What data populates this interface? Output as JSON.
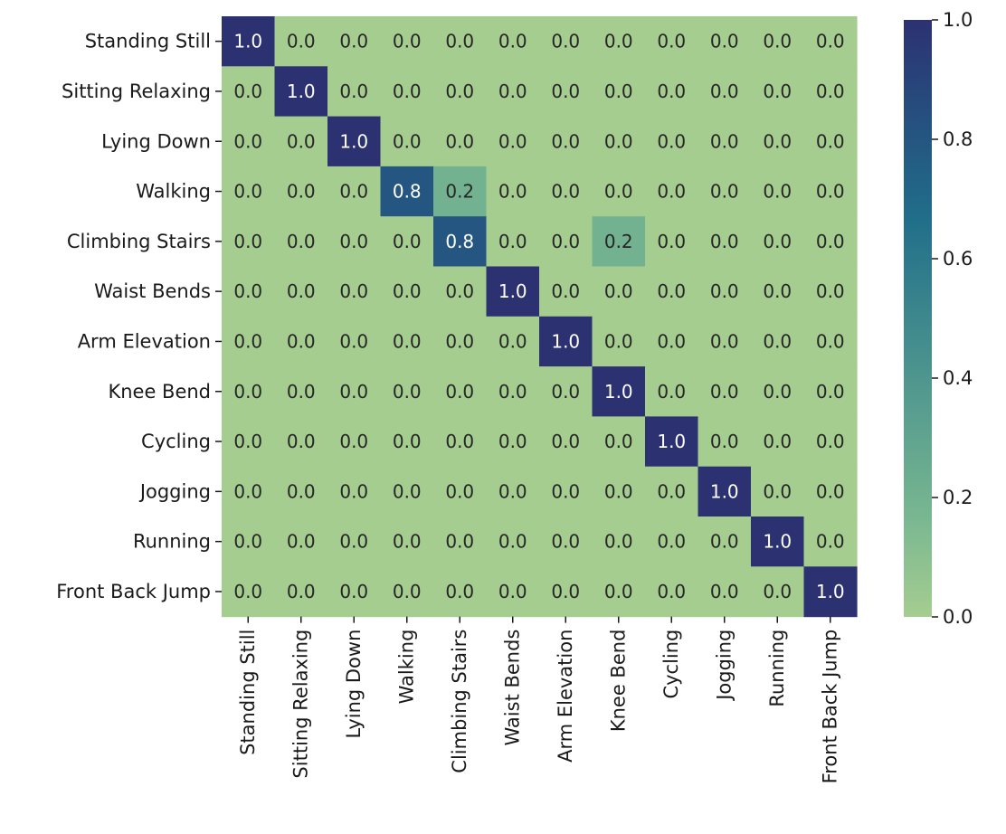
{
  "chart_data": {
    "type": "heatmap",
    "title": "",
    "xlabel": "",
    "ylabel": "",
    "row_labels": [
      "Standing Still",
      "Sitting Relaxing",
      "Lying Down",
      "Walking",
      "Climbing Stairs",
      "Waist Bends",
      "Arm Elevation",
      "Knee Bend",
      "Cycling",
      "Jogging",
      "Running",
      "Front Back Jump"
    ],
    "col_labels": [
      "Standing Still",
      "Sitting Relaxing",
      "Lying Down",
      "Walking",
      "Climbing Stairs",
      "Waist Bends",
      "Arm Elevation",
      "Knee Bend",
      "Cycling",
      "Jogging",
      "Running",
      "Front Back Jump"
    ],
    "values": [
      [
        1.0,
        0.0,
        0.0,
        0.0,
        0.0,
        0.0,
        0.0,
        0.0,
        0.0,
        0.0,
        0.0,
        0.0
      ],
      [
        0.0,
        1.0,
        0.0,
        0.0,
        0.0,
        0.0,
        0.0,
        0.0,
        0.0,
        0.0,
        0.0,
        0.0
      ],
      [
        0.0,
        0.0,
        1.0,
        0.0,
        0.0,
        0.0,
        0.0,
        0.0,
        0.0,
        0.0,
        0.0,
        0.0
      ],
      [
        0.0,
        0.0,
        0.0,
        0.8,
        0.2,
        0.0,
        0.0,
        0.0,
        0.0,
        0.0,
        0.0,
        0.0
      ],
      [
        0.0,
        0.0,
        0.0,
        0.0,
        0.8,
        0.0,
        0.0,
        0.2,
        0.0,
        0.0,
        0.0,
        0.0
      ],
      [
        0.0,
        0.0,
        0.0,
        0.0,
        0.0,
        1.0,
        0.0,
        0.0,
        0.0,
        0.0,
        0.0,
        0.0
      ],
      [
        0.0,
        0.0,
        0.0,
        0.0,
        0.0,
        0.0,
        1.0,
        0.0,
        0.0,
        0.0,
        0.0,
        0.0
      ],
      [
        0.0,
        0.0,
        0.0,
        0.0,
        0.0,
        0.0,
        0.0,
        1.0,
        0.0,
        0.0,
        0.0,
        0.0
      ],
      [
        0.0,
        0.0,
        0.0,
        0.0,
        0.0,
        0.0,
        0.0,
        0.0,
        1.0,
        0.0,
        0.0,
        0.0
      ],
      [
        0.0,
        0.0,
        0.0,
        0.0,
        0.0,
        0.0,
        0.0,
        0.0,
        0.0,
        1.0,
        0.0,
        0.0
      ],
      [
        0.0,
        0.0,
        0.0,
        0.0,
        0.0,
        0.0,
        0.0,
        0.0,
        0.0,
        0.0,
        1.0,
        0.0
      ],
      [
        0.0,
        0.0,
        0.0,
        0.0,
        0.0,
        0.0,
        0.0,
        0.0,
        0.0,
        0.0,
        0.0,
        1.0
      ]
    ],
    "value_format": "0.0",
    "colorbar": {
      "range": [
        0.0,
        1.0
      ],
      "ticks": [
        "0.0",
        "0.2",
        "0.4",
        "0.6",
        "0.8",
        "1.0"
      ],
      "colormap": "crest",
      "color_stops": [
        "#a5cd90",
        "#79b791",
        "#5a9f8f",
        "#3d878d",
        "#216e8a",
        "#25507f",
        "#2c3172"
      ]
    },
    "annotation_colors": {
      "light_bg": "#262626",
      "dark_bg": "#ffffff"
    },
    "grid": false,
    "legend": "none"
  }
}
